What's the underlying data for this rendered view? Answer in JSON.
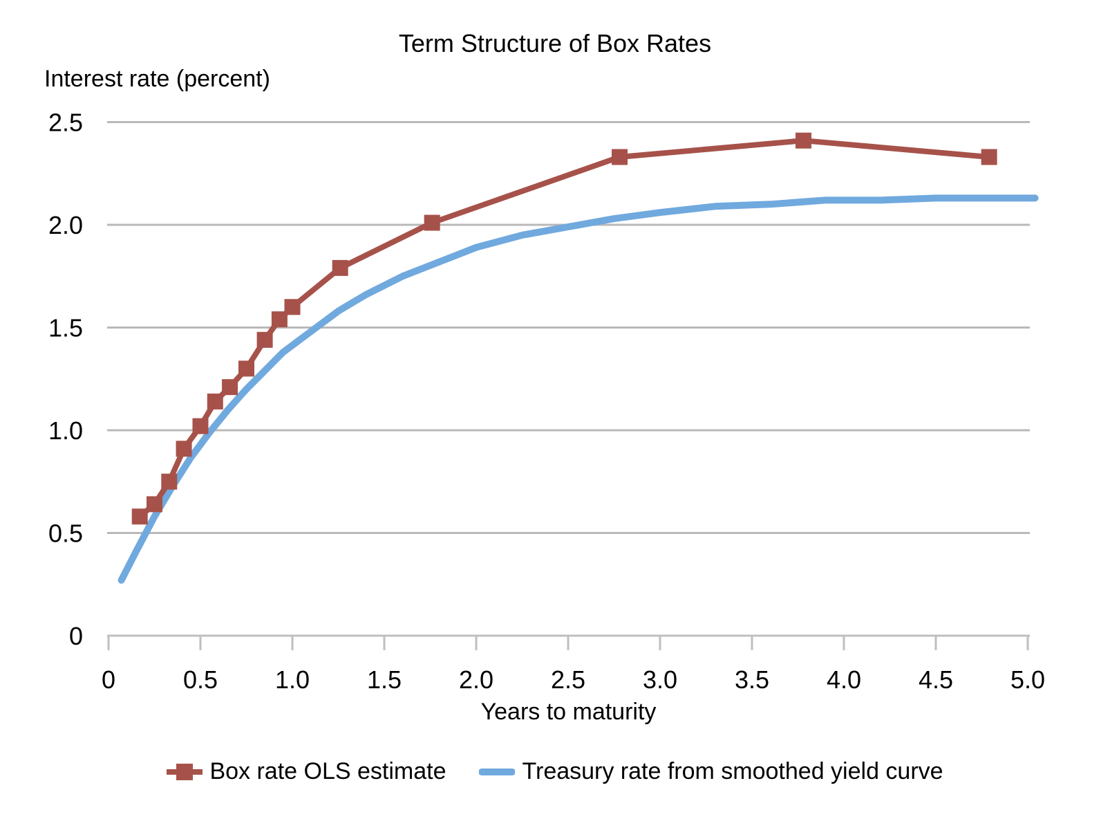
{
  "chart_data": {
    "type": "line",
    "title": "Term Structure of Box Rates",
    "ylabel": "Interest rate (percent)",
    "xlabel": "Years to maturity",
    "xlim": [
      0,
      5.1
    ],
    "ylim": [
      0,
      2.5
    ],
    "x_ticks": {
      "values": [
        0,
        0.5,
        1,
        1.5,
        2,
        2.5,
        3,
        3.5,
        4,
        4.5,
        5
      ],
      "labels": [
        "0",
        "0.5",
        "1.0",
        "1.5",
        "2.0",
        "2.5",
        "3.0",
        "3.5",
        "4.0",
        "4.5",
        "5.0"
      ]
    },
    "y_ticks": {
      "values": [
        0,
        0.5,
        1,
        1.5,
        2,
        2.5
      ],
      "labels": [
        "0",
        "0.5",
        "1.0",
        "1.5",
        "2.0",
        "2.5"
      ]
    },
    "grid": {
      "horizontal": true,
      "vertical": false
    },
    "grid_color": "#b9b9b9",
    "axis_color": "#bfbfbf",
    "text_color": "#000000",
    "legend_position": "bottom",
    "series": [
      {
        "name": "Box rate OLS estimate",
        "type": "line",
        "marker": "square",
        "color": "#a6524a",
        "points": [
          [
            0.17,
            0.58
          ],
          [
            0.25,
            0.64
          ],
          [
            0.33,
            0.75
          ],
          [
            0.41,
            0.91
          ],
          [
            0.5,
            1.02
          ],
          [
            0.58,
            1.14
          ],
          [
            0.66,
            1.21
          ],
          [
            0.75,
            1.3
          ],
          [
            0.85,
            1.44
          ],
          [
            0.93,
            1.54
          ],
          [
            1.0,
            1.6
          ],
          [
            1.26,
            1.79
          ],
          [
            1.76,
            2.01
          ],
          [
            2.78,
            2.33
          ],
          [
            3.78,
            2.41
          ],
          [
            4.79,
            2.33
          ]
        ]
      },
      {
        "name": "Treasury rate from smoothed yield curve",
        "type": "line",
        "marker": "none",
        "color": "#70a9de",
        "points": [
          [
            0.07,
            0.27
          ],
          [
            0.15,
            0.41
          ],
          [
            0.25,
            0.58
          ],
          [
            0.35,
            0.73
          ],
          [
            0.45,
            0.87
          ],
          [
            0.55,
            0.99
          ],
          [
            0.65,
            1.1
          ],
          [
            0.75,
            1.2
          ],
          [
            0.85,
            1.29
          ],
          [
            0.95,
            1.38
          ],
          [
            1.1,
            1.48
          ],
          [
            1.25,
            1.58
          ],
          [
            1.4,
            1.66
          ],
          [
            1.6,
            1.75
          ],
          [
            1.8,
            1.82
          ],
          [
            2.0,
            1.89
          ],
          [
            2.25,
            1.95
          ],
          [
            2.5,
            1.99
          ],
          [
            2.75,
            2.03
          ],
          [
            3.0,
            2.06
          ],
          [
            3.3,
            2.09
          ],
          [
            3.6,
            2.1
          ],
          [
            3.9,
            2.12
          ],
          [
            4.2,
            2.12
          ],
          [
            4.5,
            2.13
          ],
          [
            4.79,
            2.13
          ],
          [
            5.04,
            2.13
          ]
        ]
      }
    ]
  }
}
